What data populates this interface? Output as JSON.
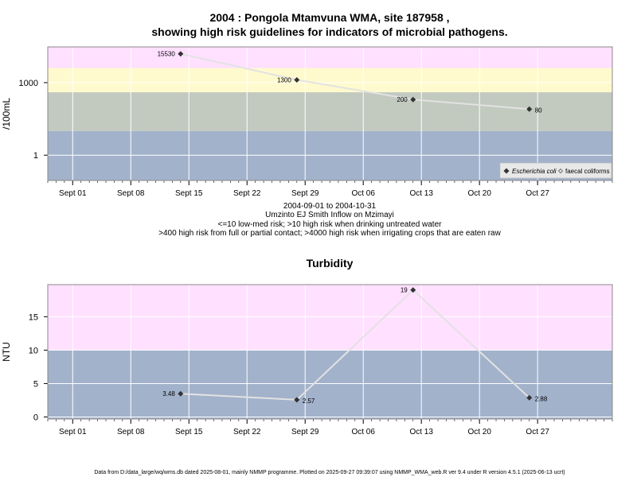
{
  "title_line1": "2004 : Pongola Mtamvuna WMA, site 187958 ,",
  "title_line2": "showing high risk guidelines for indicators of microbial pathogens.",
  "subtitle_lines": [
    "2004-09-01 to 2004-10-31",
    "Umzinto EJ Smith Inflow on Mzimayi",
    "<=10 low-med risk; >10 high risk when drinking untreated water",
    ">400 high risk from full or partial contact; >4000 high risk when irrigating crops that are eaten raw"
  ],
  "footer": "Data from D:/data_large/wq/wms.db dated 2025-08-01, mainly NMMP programme. Plotted on 2025-09-27 09:39:07 using NMMP_WMA_web.R ver 9.4 under R version 4.5.1 (2025-06-13 ucrt)",
  "colors": {
    "band_pink": "#ffe0ff",
    "band_yellow": "#fffacd",
    "band_gray": "#c2c9bf",
    "band_blue": "#a3b2cb",
    "grid": "#ffffff",
    "line": "#e2e2e2",
    "marker": "#333333"
  },
  "chart_data": [
    {
      "type": "line",
      "ylabel": "/100mL",
      "y_scale": "log10",
      "y_ticks": [
        1,
        1000
      ],
      "y_tick_labels": [
        "1",
        "1000"
      ],
      "x_ticks": [
        "2004-09-01",
        "2004-09-08",
        "2004-09-15",
        "2004-09-22",
        "2004-09-29",
        "2004-10-06",
        "2004-10-13",
        "2004-10-20",
        "2004-10-27"
      ],
      "x_tick_labels": [
        "Sept 01",
        "Sept 08",
        "Sept 15",
        "Sept 22",
        "Sept 29",
        "Oct 06",
        "Oct 13",
        "Oct 20",
        "Oct 27"
      ],
      "xlim": [
        "2004-08-29",
        "2004-11-05"
      ],
      "ylim": [
        0.09,
        30000
      ],
      "bands": [
        {
          "from": 0.09,
          "to": 10,
          "color": "band_blue"
        },
        {
          "from": 10,
          "to": 400,
          "color": "band_gray"
        },
        {
          "from": 400,
          "to": 4000,
          "color": "band_yellow"
        },
        {
          "from": 4000,
          "to": 30000,
          "color": "band_pink"
        }
      ],
      "series": [
        {
          "name": "Escherichia coli",
          "x": [
            "2004-09-14",
            "2004-09-28",
            "2004-10-12",
            "2004-10-26"
          ],
          "y": [
            15530,
            1300,
            200,
            80
          ],
          "labels": [
            "15530",
            "1300",
            "200",
            "80"
          ],
          "label_side": [
            "left",
            "left",
            "left",
            "right"
          ]
        }
      ],
      "legend": {
        "position": "bottom-right",
        "entries": [
          "Escherichia coli",
          "faecal coliforms"
        ]
      }
    },
    {
      "type": "line",
      "title": "Turbidity",
      "ylabel": "NTU",
      "y_ticks": [
        0,
        5,
        10,
        15
      ],
      "y_tick_labels": [
        "0",
        "5",
        "10",
        "15"
      ],
      "x_ticks": [
        "2004-09-01",
        "2004-09-08",
        "2004-09-15",
        "2004-09-22",
        "2004-09-29",
        "2004-10-06",
        "2004-10-13",
        "2004-10-20",
        "2004-10-27"
      ],
      "x_tick_labels": [
        "Sept 01",
        "Sept 08",
        "Sept 15",
        "Sept 22",
        "Sept 29",
        "Oct 06",
        "Oct 13",
        "Oct 20",
        "Oct 27"
      ],
      "xlim": [
        "2004-08-29",
        "2004-11-05"
      ],
      "ylim": [
        -0.3,
        19.8
      ],
      "bands": [
        {
          "from": -0.3,
          "to": 10,
          "color": "band_blue"
        },
        {
          "from": 10,
          "to": 19.8,
          "color": "band_pink"
        }
      ],
      "series": [
        {
          "x": [
            "2004-09-14",
            "2004-09-28",
            "2004-10-12",
            "2004-10-26"
          ],
          "y": [
            3.48,
            2.57,
            19,
            2.88
          ],
          "labels": [
            "3.48",
            "2.57",
            "19",
            "2.88"
          ],
          "label_side": [
            "left",
            "right",
            "left",
            "right"
          ]
        }
      ]
    }
  ]
}
